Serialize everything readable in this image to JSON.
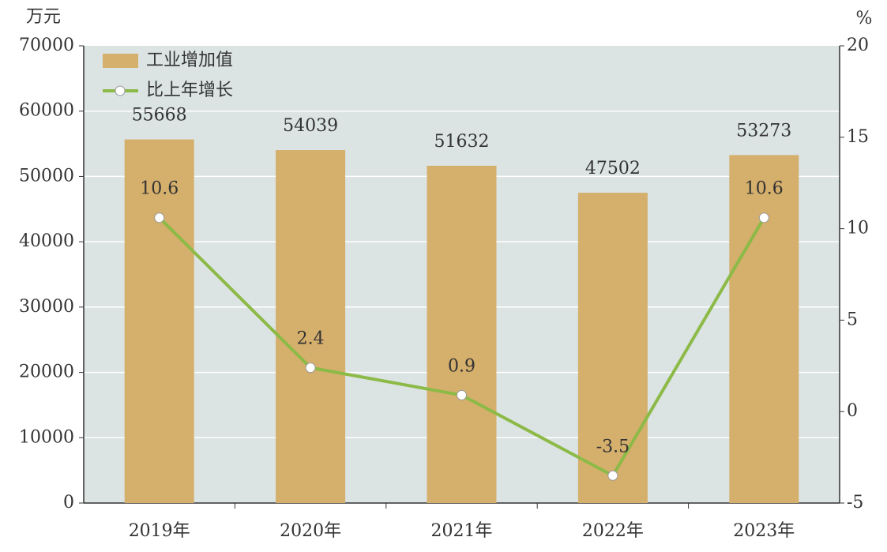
{
  "chart_data": {
    "type": "bar",
    "y_unit": "万元",
    "y2_unit": "%",
    "categories": [
      "2019年",
      "2020年",
      "2021年",
      "2022年",
      "2023年"
    ],
    "series": [
      {
        "name": "工业增加值",
        "color": "#d5af6c",
        "type": "bar",
        "values": [
          55668,
          54039,
          51632,
          47502,
          53273
        ]
      },
      {
        "name": "比上年增长",
        "color": "#8cba47",
        "type": "line",
        "axis": "y2",
        "values": [
          10.6,
          2.4,
          0.9,
          -3.5,
          10.6
        ]
      }
    ],
    "ylim": [
      0,
      70000
    ],
    "yticks": [
      0,
      10000,
      20000,
      30000,
      40000,
      50000,
      60000,
      70000
    ],
    "y2lim": [
      -5,
      20
    ],
    "y2ticks": [
      -5,
      0,
      5,
      10,
      15,
      20
    ],
    "grid": true,
    "legend": "top-left"
  }
}
